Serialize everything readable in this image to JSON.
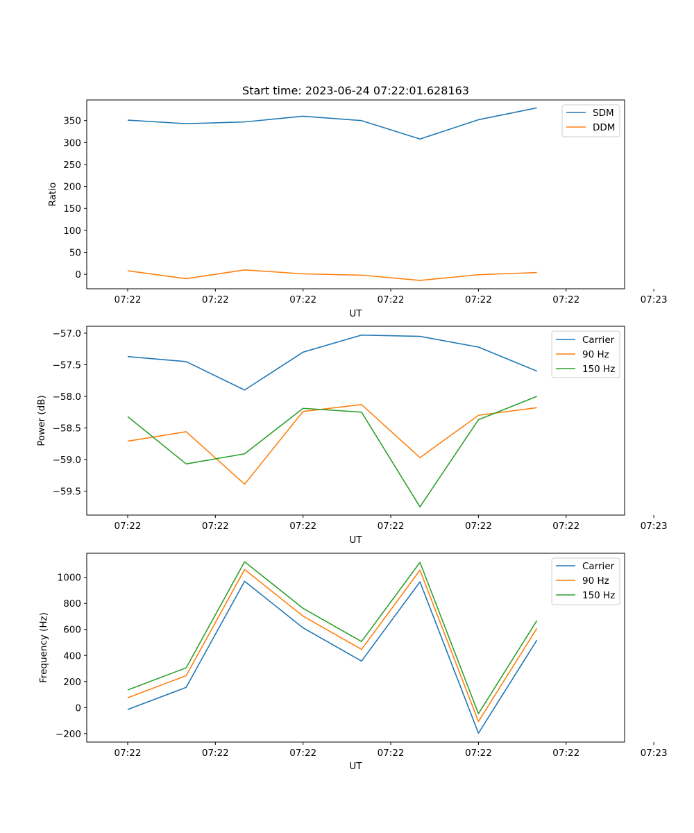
{
  "chart_data": [
    {
      "type": "line",
      "title": "Start time: 2023-06-24 07:22:01.628163",
      "xlabel": "UT",
      "ylabel": "Ratio",
      "x_tick_labels": [
        "07:22",
        "07:22",
        "07:22",
        "07:22",
        "07:22",
        "07:22",
        "07:23"
      ],
      "y_ticks": [
        0,
        50,
        100,
        150,
        200,
        250,
        300,
        350
      ],
      "ylim": [
        -33,
        397
      ],
      "xlim": [
        -0.7,
        8.5
      ],
      "grid": false,
      "legend_position": "upper right",
      "series": [
        {
          "name": "SDM",
          "color": "#1f77b4",
          "values": [
            351,
            343,
            347,
            360,
            350,
            308,
            352,
            379
          ]
        },
        {
          "name": "DDM",
          "color": "#ff7f0e",
          "values": [
            8,
            -10,
            10,
            1,
            -2,
            -14,
            -1,
            4
          ]
        }
      ]
    },
    {
      "type": "line",
      "title": "",
      "xlabel": "UT",
      "ylabel": "Power (dB)",
      "x_tick_labels": [
        "07:22",
        "07:22",
        "07:22",
        "07:22",
        "07:22",
        "07:22",
        "07:23"
      ],
      "y_ticks": [
        -59.5,
        -59.0,
        -58.5,
        -58.0,
        -57.5,
        -57.0
      ],
      "y_tick_labels": [
        "−59.5",
        "−59.0",
        "−58.5",
        "−58.0",
        "−57.5",
        "−57.0"
      ],
      "ylim": [
        -59.88,
        -56.89
      ],
      "xlim": [
        -0.7,
        8.5
      ],
      "grid": false,
      "legend_position": "upper right",
      "series": [
        {
          "name": "Carrier",
          "color": "#1f77b4",
          "values": [
            -57.37,
            -57.45,
            -57.9,
            -57.3,
            -57.03,
            -57.05,
            -57.22,
            -57.6
          ]
        },
        {
          "name": "90 Hz",
          "color": "#ff7f0e",
          "values": [
            -58.71,
            -58.56,
            -59.39,
            -58.24,
            -58.13,
            -58.97,
            -58.3,
            -58.18
          ]
        },
        {
          "name": "150 Hz",
          "color": "#2ca02c",
          "values": [
            -58.32,
            -59.07,
            -58.91,
            -58.19,
            -58.25,
            -59.75,
            -58.37,
            -58.0
          ]
        }
      ]
    },
    {
      "type": "line",
      "title": "",
      "xlabel": "UT",
      "ylabel": "Frequency (Hz)",
      "x_tick_labels": [
        "07:22",
        "07:22",
        "07:22",
        "07:22",
        "07:22",
        "07:22",
        "07:23"
      ],
      "y_ticks": [
        -200,
        0,
        200,
        400,
        600,
        800,
        1000
      ],
      "y_tick_labels": [
        "−200",
        "0",
        "200",
        "400",
        "600",
        "800",
        "1000"
      ],
      "ylim": [
        -265,
        1185
      ],
      "xlim": [
        -0.7,
        8.5
      ],
      "grid": false,
      "legend_position": "upper right",
      "series": [
        {
          "name": "Carrier",
          "color": "#1f77b4",
          "values": [
            -15,
            155,
            970,
            612,
            357,
            965,
            -197,
            518
          ]
        },
        {
          "name": "90 Hz",
          "color": "#ff7f0e",
          "values": [
            75,
            245,
            1060,
            702,
            447,
            1055,
            -107,
            608
          ]
        },
        {
          "name": "150 Hz",
          "color": "#2ca02c",
          "values": [
            135,
            305,
            1120,
            762,
            507,
            1115,
            -47,
            668
          ]
        }
      ]
    }
  ]
}
